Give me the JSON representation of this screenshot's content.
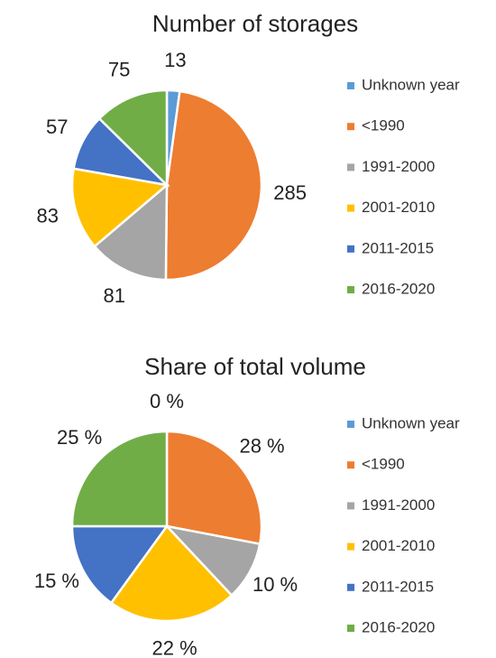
{
  "chart_data": [
    {
      "type": "pie",
      "title": "Number of storages",
      "categories": [
        "Unknown year",
        "<1990",
        "1991-2000",
        "2001-2010",
        "2011-2015",
        "2016-2020"
      ],
      "values": [
        13,
        285,
        81,
        83,
        57,
        75
      ],
      "colors": [
        "#5b9bd5",
        "#ed7d31",
        "#a5a5a5",
        "#ffc000",
        "#4472c4",
        "#70ad47"
      ]
    },
    {
      "type": "pie",
      "title": "Share of total volume",
      "categories": [
        "Unknown year",
        "<1990",
        "1991-2000",
        "2001-2010",
        "2011-2015",
        "2016-2020"
      ],
      "values": [
        0,
        28,
        10,
        22,
        15,
        25
      ],
      "value_labels": [
        "0 %",
        "28 %",
        "10 %",
        "22 %",
        "15 %",
        "25 %"
      ],
      "colors": [
        "#5b9bd5",
        "#ed7d31",
        "#a5a5a5",
        "#ffc000",
        "#4472c4",
        "#70ad47"
      ]
    }
  ]
}
